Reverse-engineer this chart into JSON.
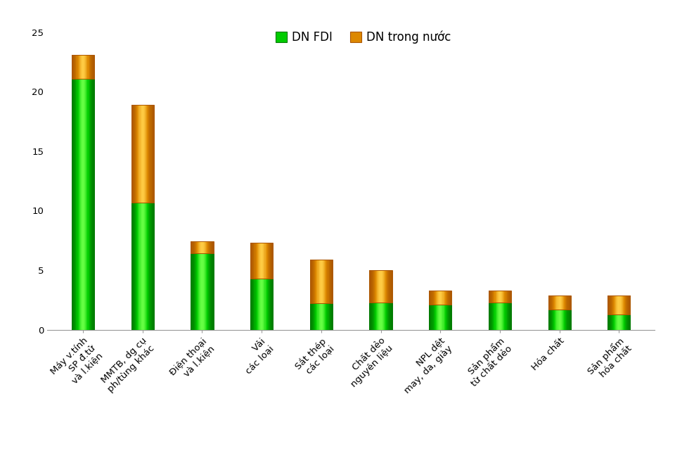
{
  "categories": [
    "Máy v.tính\nSP đ.tử\nvà l.kiện",
    "MMTB, dg cụ\nph/tùng khác",
    "Điện thoại\nvà l.kiện",
    "Vải\ncác loại",
    "Sắt thép\ncác loại",
    "Chất dẻo\nnguyên liệu",
    "NPL dệt\nmay, da, giày",
    "Sản phẩm\ntừ chất dẻo",
    "Hóa chất",
    "Sản phẩm\nhóa chất"
  ],
  "fdi_values": [
    21.1,
    10.7,
    6.4,
    4.3,
    2.2,
    2.3,
    2.1,
    2.3,
    1.7,
    1.3
  ],
  "domestic_values": [
    2.0,
    8.2,
    1.0,
    3.0,
    3.7,
    2.7,
    1.2,
    1.0,
    1.2,
    1.6
  ],
  "fdi_color_main": "#00CC00",
  "fdi_color_light": "#66FF44",
  "fdi_color_dark": "#007700",
  "domestic_color_main": "#DD8800",
  "domestic_color_light": "#FFCC44",
  "domestic_color_dark": "#AA5500",
  "fdi_label": "DN FDI",
  "domestic_label": "DN trong nước",
  "ylim": [
    0,
    25
  ],
  "yticks": [
    0,
    5,
    10,
    15,
    20,
    25
  ],
  "bar_width": 0.38,
  "background_color": "#ffffff",
  "tick_fontsize": 9.5,
  "legend_fontsize": 12,
  "axis_label_color": "#333333",
  "spine_color": "#999999"
}
